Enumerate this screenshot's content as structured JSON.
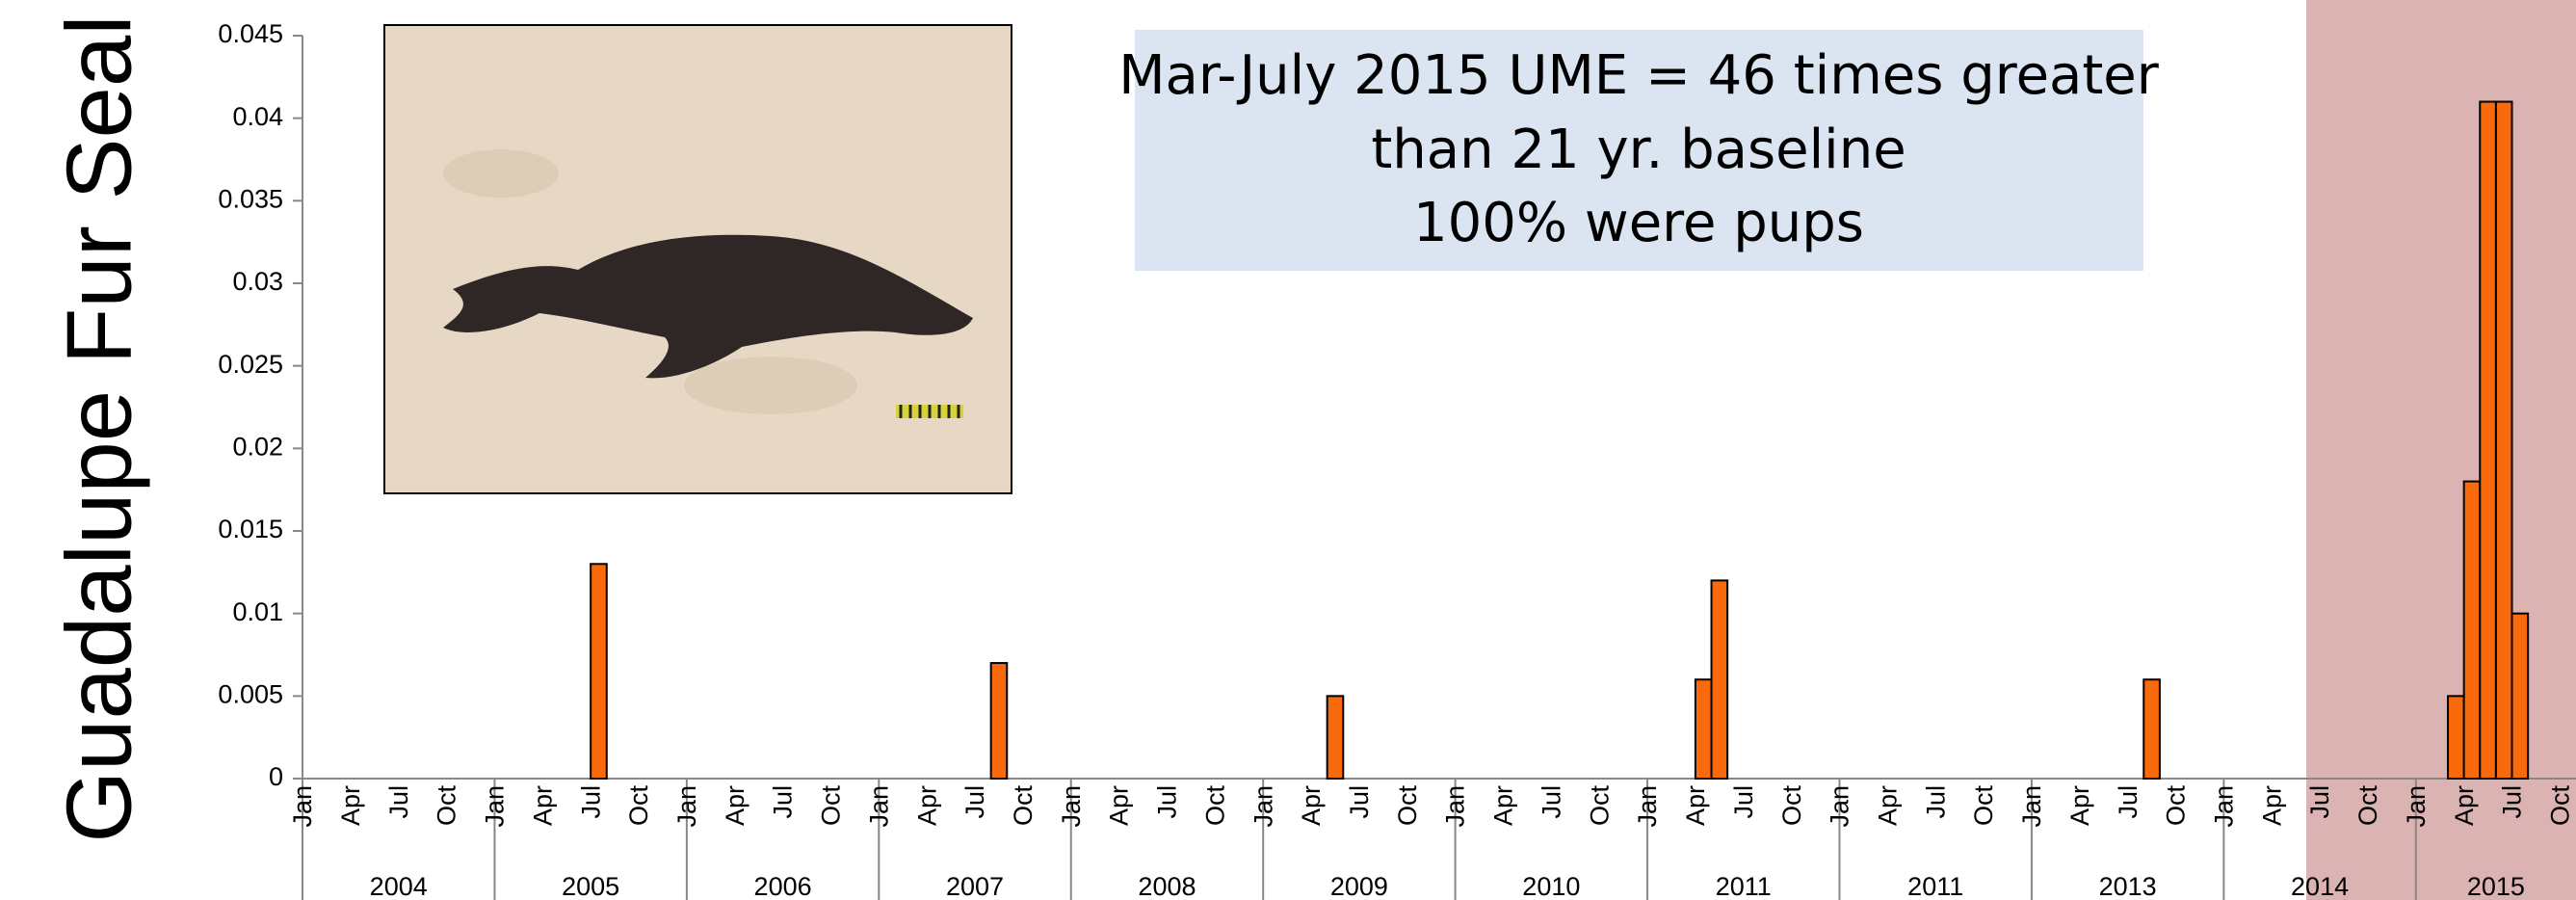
{
  "chart_data": {
    "type": "bar",
    "ylabel": "Guadalupe Fur Seal",
    "annotation": [
      "Mar-July 2015 UME = 46 times greater",
      "than  21 yr. baseline",
      "100% were pups"
    ],
    "years": [
      "2004",
      "2005",
      "2006",
      "2007",
      "2008",
      "2009",
      "2010",
      "2011",
      "2011",
      "2013",
      "2014",
      "2015"
    ],
    "categories": [
      "Jan",
      null,
      null,
      "Apr",
      null,
      null,
      "Jul",
      null,
      null,
      "Oct",
      null,
      null,
      "Jan",
      null,
      null,
      "Apr",
      null,
      null,
      "Jul",
      null,
      null,
      "Oct",
      null,
      null,
      "Jan",
      null,
      null,
      "Apr",
      null,
      null,
      "Jul",
      null,
      null,
      "Oct",
      null,
      null,
      "Jan",
      null,
      null,
      "Apr",
      null,
      null,
      "Jul",
      null,
      null,
      "Oct",
      null,
      null,
      "Jan",
      null,
      null,
      "Apr",
      null,
      null,
      "Jul",
      null,
      null,
      "Oct",
      null,
      null,
      "Jan",
      null,
      null,
      "Apr",
      null,
      null,
      "Jul",
      null,
      null,
      "Oct",
      null,
      null,
      "Jan",
      null,
      null,
      "Apr",
      null,
      null,
      "Jul",
      null,
      null,
      "Oct",
      null,
      null,
      "Jan",
      null,
      null,
      "Apr",
      null,
      null,
      "Jul",
      null,
      null,
      "Oct",
      null,
      null,
      "Jan",
      null,
      null,
      "Apr",
      null,
      null,
      "Jul",
      null,
      null,
      "Oct",
      null,
      null,
      "Jan",
      null,
      null,
      "Apr",
      null,
      null,
      "Jul",
      null,
      null,
      "Oct",
      null,
      null,
      "Jan",
      null,
      null,
      "Apr",
      null,
      null,
      "Jul",
      null,
      null,
      "Oct",
      null,
      null,
      "Jan",
      null,
      null,
      "Apr",
      null,
      null,
      "Jul",
      null,
      null,
      "Oct"
    ],
    "values": [
      0,
      0,
      0,
      0,
      0,
      0,
      0,
      0,
      0,
      0,
      0,
      0,
      0,
      0,
      0,
      0,
      0,
      0,
      0.013,
      0,
      0,
      0,
      0,
      0,
      0,
      0,
      0,
      0,
      0,
      0,
      0,
      0,
      0,
      0,
      0,
      0,
      0,
      0,
      0,
      0,
      0,
      0,
      0,
      0.007,
      0,
      0,
      0,
      0,
      0,
      0,
      0,
      0,
      0,
      0,
      0,
      0,
      0,
      0,
      0,
      0,
      0,
      0,
      0,
      0,
      0.005,
      0,
      0,
      0,
      0,
      0,
      0,
      0,
      0,
      0,
      0,
      0,
      0,
      0,
      0,
      0,
      0,
      0,
      0,
      0,
      0,
      0,
      0,
      0.006,
      0.012,
      0,
      0,
      0,
      0,
      0,
      0,
      0,
      0,
      0,
      0,
      0,
      0,
      0,
      0,
      0,
      0,
      0,
      0,
      0,
      0,
      0,
      0,
      0,
      0,
      0,
      0,
      0.006,
      0,
      0,
      0,
      0,
      0,
      0,
      0,
      0,
      0,
      0,
      0,
      0,
      0,
      0,
      0,
      0,
      0,
      0,
      0.005,
      0.018,
      0.041,
      0.041,
      0.01,
      0,
      0,
      0
    ],
    "color": "#f96a0c",
    "ylim": [
      0,
      0.045
    ],
    "yticks": [
      0,
      0.005,
      0.01,
      0.015,
      0.02,
      0.025,
      0.03,
      0.035,
      0.04,
      0.045
    ]
  }
}
